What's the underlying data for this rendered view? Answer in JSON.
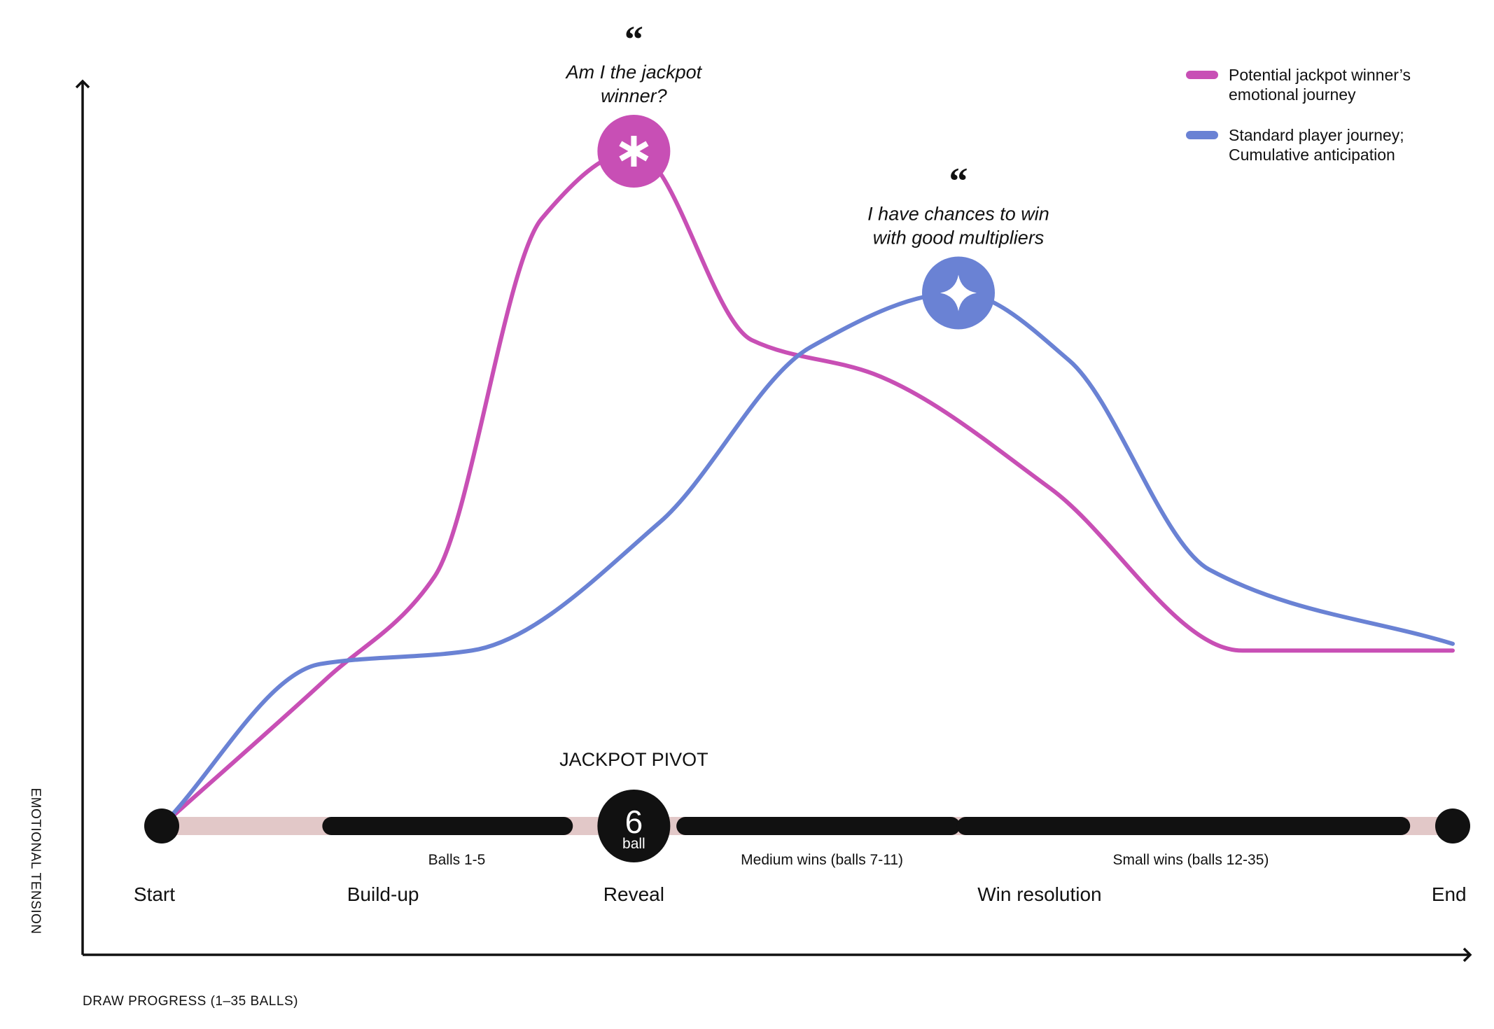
{
  "chart_data": {
    "type": "line",
    "title": "",
    "xlabel": "DRAW PROGRESS (1–35 BALLS)",
    "ylabel": "EMOTIONAL TENSION",
    "x_range": [
      0,
      35
    ],
    "y_range": [
      0,
      100
    ],
    "grid": false,
    "legend_position": "top-right",
    "series": [
      {
        "name": "Potential jackpot winner’s emotional journey",
        "name_lines": [
          "Potential jackpot winner’s",
          "emotional journey"
        ],
        "color": "#c84fb5",
        "x": [
          0,
          4.5,
          7.4,
          10.3,
          12.8,
          16.0,
          19.3,
          24.1,
          29.3,
          35.0
        ],
        "y": [
          0,
          22,
          37,
          90,
          100,
          72,
          67,
          50,
          26,
          26
        ]
      },
      {
        "name": "Standard player journey; Cumulative anticipation",
        "name_lines": [
          "Standard player journey;",
          "Cumulative anticipation"
        ],
        "color": "#6a82d4",
        "x": [
          0,
          4.3,
          8.4,
          13.5,
          17.6,
          21.6,
          24.6,
          28.4,
          35.0
        ],
        "y": [
          0,
          24,
          26,
          45,
          71,
          79,
          69,
          38,
          27
        ]
      }
    ],
    "peaks": [
      {
        "series": 0,
        "x": 12.8,
        "y": 100,
        "icon": "asterisk-icon",
        "quote_lines": [
          "Am I the jackpot",
          "winner?"
        ]
      },
      {
        "series": 1,
        "x": 21.6,
        "y": 79,
        "icon": "sparkle-icon",
        "quote_lines": [
          "I have chances to win",
          "with good multipliers"
        ]
      }
    ],
    "timeline": {
      "track_color": "#e2c8c8",
      "segment_color": "#111111",
      "pivot_title": "JACKPOT PIVOT",
      "pivot_ball": {
        "x": 12.8,
        "number": "6",
        "word": "ball"
      },
      "endpoints": [
        0,
        35
      ],
      "segments": [
        {
          "from": 4.6,
          "to": 10.9,
          "label": "Balls 1-5",
          "label_x": 8.0
        },
        {
          "from": 14.2,
          "to": 21.4,
          "label": "Medium wins (balls 7-11)",
          "label_x": 17.9
        },
        {
          "from": 21.8,
          "to": 33.6,
          "label": "Small wins (balls 12-35)",
          "label_x": 27.9
        }
      ],
      "stages": [
        {
          "label": "Start",
          "x": -0.2
        },
        {
          "label": "Build-up",
          "x": 6.0
        },
        {
          "label": "Reveal",
          "x": 12.8
        },
        {
          "label": "Win resolution",
          "x": 23.8
        },
        {
          "label": "End",
          "x": 34.9
        }
      ]
    }
  }
}
